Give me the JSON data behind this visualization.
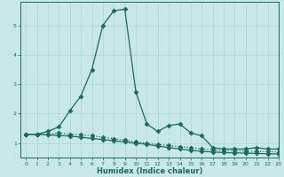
{
  "xlabel": "Humidex (Indice chaleur)",
  "background_color": "#c8e8e8",
  "grid_color": "#b0d8d8",
  "line_color": "#1a6b5a",
  "x_data": [
    0,
    1,
    2,
    3,
    4,
    5,
    6,
    7,
    8,
    9,
    10,
    11,
    12,
    13,
    14,
    15,
    16,
    17,
    18,
    19,
    20,
    21,
    22,
    23
  ],
  "series1": [
    1.3,
    1.3,
    1.4,
    1.55,
    2.1,
    2.6,
    3.5,
    5.0,
    5.5,
    5.55,
    2.75,
    1.65,
    1.4,
    1.6,
    1.65,
    1.35,
    1.25,
    0.85,
    0.8,
    0.8,
    0.8,
    0.85,
    0.8,
    0.8
  ],
  "series2": [
    1.3,
    1.3,
    1.3,
    1.35,
    1.3,
    1.28,
    1.25,
    1.2,
    1.15,
    1.1,
    1.05,
    1.0,
    0.95,
    0.92,
    0.88,
    0.85,
    0.8,
    0.77,
    0.75,
    0.74,
    0.73,
    0.72,
    0.71,
    0.7
  ],
  "series3": [
    1.3,
    1.3,
    1.28,
    1.26,
    1.24,
    1.2,
    1.16,
    1.12,
    1.08,
    1.04,
    1.0,
    0.96,
    0.9,
    0.85,
    0.8,
    0.76,
    0.72,
    0.7,
    0.68,
    0.67,
    0.66,
    0.65,
    0.64,
    0.63
  ],
  "ylim": [
    0.5,
    5.8
  ],
  "xlim": [
    -0.5,
    23
  ],
  "yticks": [
    1,
    2,
    3,
    4,
    5
  ],
  "xticks": [
    0,
    1,
    2,
    3,
    4,
    5,
    6,
    7,
    8,
    9,
    10,
    11,
    12,
    13,
    14,
    15,
    16,
    17,
    18,
    19,
    20,
    21,
    22,
    23
  ]
}
